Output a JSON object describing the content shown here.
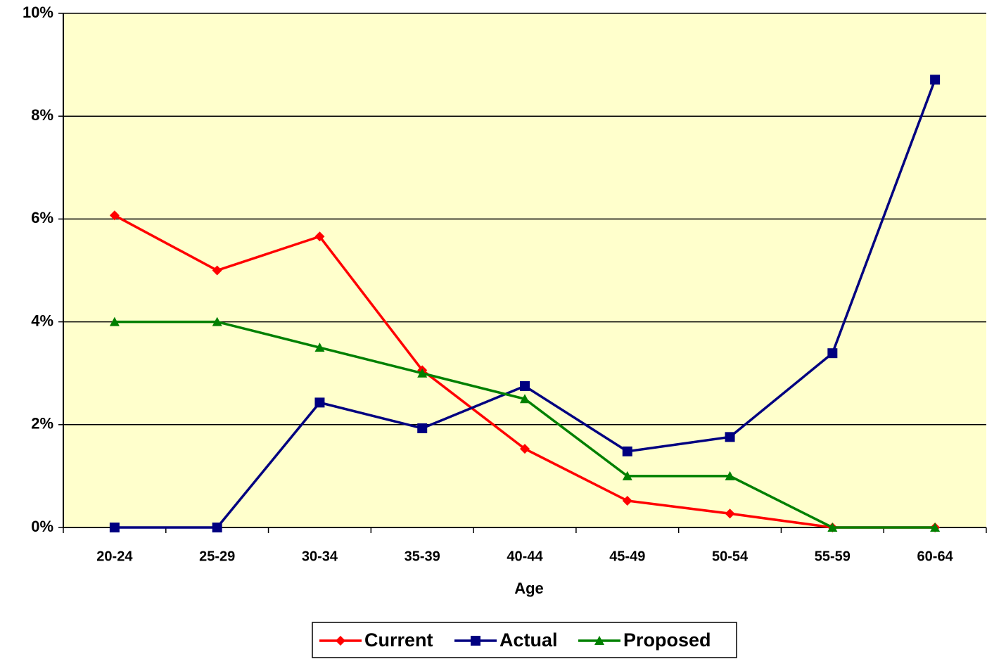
{
  "chart_data": {
    "type": "line",
    "x_label": "Age",
    "categories": [
      "20-24",
      "25-29",
      "30-34",
      "35-39",
      "40-44",
      "45-49",
      "50-54",
      "55-59",
      "60-64"
    ],
    "series": [
      {
        "name": "Current",
        "color": "#ff0000",
        "marker": "diamond",
        "values": [
          6.07,
          5.0,
          5.66,
          3.06,
          1.53,
          0.52,
          0.27,
          0,
          0
        ]
      },
      {
        "name": "Actual",
        "color": "#000080",
        "marker": "square",
        "values": [
          0,
          0,
          2.43,
          1.93,
          2.75,
          1.48,
          1.76,
          3.39,
          8.71
        ]
      },
      {
        "name": "Proposed",
        "color": "#008000",
        "marker": "triangle",
        "values": [
          4,
          4,
          3.5,
          3,
          2.5,
          1,
          1,
          0,
          0
        ]
      }
    ],
    "ylim": [
      0,
      10
    ],
    "yticks": [
      {
        "value": 0,
        "label": "0%"
      },
      {
        "value": 2,
        "label": "2%"
      },
      {
        "value": 4,
        "label": "4%"
      },
      {
        "value": 6,
        "label": "6%"
      },
      {
        "value": 8,
        "label": "8%"
      },
      {
        "value": 10,
        "label": "10%"
      }
    ],
    "grid": true,
    "legend": "bottom",
    "plot_background": "#ffffcc"
  }
}
